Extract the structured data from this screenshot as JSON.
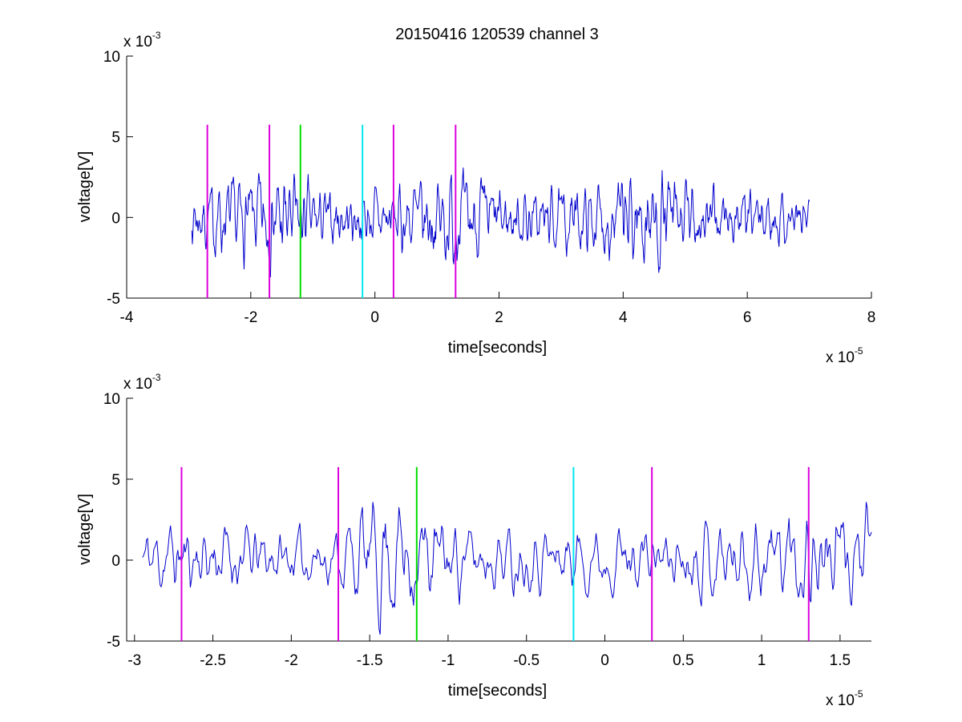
{
  "chart_data": [
    {
      "type": "line",
      "title": "20150416 120539 channel 3",
      "xlabel": "time[seconds]",
      "ylabel": "voltage[V]",
      "x_multiplier_label": "x 10",
      "x_multiplier_exp": "-5",
      "y_multiplier_label": "x 10",
      "y_multiplier_exp": "-3",
      "xlim": [
        -4,
        8
      ],
      "ylim": [
        -5,
        10
      ],
      "xticks": [
        -4,
        -2,
        0,
        2,
        4,
        6,
        8
      ],
      "xtick_labels": [
        "-4",
        "-2",
        "0",
        "2",
        "4",
        "6",
        "8"
      ],
      "yticks": [
        -5,
        0,
        5,
        10
      ],
      "ytick_labels": [
        "-5",
        "0",
        "5",
        "10"
      ],
      "grid": false,
      "signal": {
        "color": "#0000cc",
        "x_range": [
          -2.95,
          7.0
        ],
        "samples": 1100,
        "seed": 7,
        "noise_amplitude": 0.9,
        "envelope": [
          [
            -2.95,
            1.0
          ],
          [
            -2.2,
            1.3
          ],
          [
            -1.4,
            1.7
          ],
          [
            -0.8,
            0.9
          ],
          [
            0.0,
            1.0
          ],
          [
            1.2,
            1.6
          ],
          [
            2.5,
            0.9
          ],
          [
            3.5,
            1.1
          ],
          [
            4.3,
            1.8
          ],
          [
            5.5,
            1.0
          ],
          [
            7.0,
            0.8
          ]
        ]
      },
      "markers": [
        {
          "x": -2.7,
          "color": "#dd00dd",
          "y_top": 5.75
        },
        {
          "x": -1.7,
          "color": "#dd00dd",
          "y_top": 5.75
        },
        {
          "x": -1.2,
          "color": "#00dd00",
          "y_top": 5.75
        },
        {
          "x": -0.2,
          "color": "#00e5ee",
          "y_top": 5.75
        },
        {
          "x": 0.3,
          "color": "#dd00dd",
          "y_top": 5.75
        },
        {
          "x": 1.3,
          "color": "#dd00dd",
          "y_top": 5.75
        }
      ]
    },
    {
      "type": "line",
      "title": "",
      "xlabel": "time[seconds]",
      "ylabel": "voltage[V]",
      "x_multiplier_label": "x 10",
      "x_multiplier_exp": "-5",
      "y_multiplier_label": "x 10",
      "y_multiplier_exp": "-3",
      "xlim": [
        -3.05,
        1.7
      ],
      "ylim": [
        -5,
        10
      ],
      "xticks": [
        -3,
        -2.5,
        -2,
        -1.5,
        -1,
        -0.5,
        0,
        0.5,
        1,
        1.5
      ],
      "xtick_labels": [
        "-3",
        "-2.5",
        "-2",
        "-1.5",
        "-1",
        "-0.5",
        "0",
        "0.5",
        "1",
        "1.5"
      ],
      "yticks": [
        -5,
        0,
        5,
        10
      ],
      "ytick_labels": [
        "-5",
        "0",
        "5",
        "10"
      ],
      "grid": false,
      "signal": {
        "color": "#0000cc",
        "x_range": [
          -2.95,
          1.7
        ],
        "samples": 700,
        "seed": 11,
        "noise_amplitude": 1.0,
        "envelope": [
          [
            -2.95,
            1.1
          ],
          [
            -2.5,
            1.2
          ],
          [
            -2.0,
            0.8
          ],
          [
            -1.7,
            0.9
          ],
          [
            -1.35,
            2.2
          ],
          [
            -1.2,
            1.6
          ],
          [
            -0.8,
            0.9
          ],
          [
            -0.2,
            1.0
          ],
          [
            0.3,
            0.9
          ],
          [
            0.8,
            1.1
          ],
          [
            1.2,
            1.8
          ],
          [
            1.7,
            1.4
          ]
        ]
      },
      "markers": [
        {
          "x": -2.7,
          "color": "#dd00dd",
          "y_top": 5.75
        },
        {
          "x": -1.7,
          "color": "#dd00dd",
          "y_top": 5.75
        },
        {
          "x": -1.2,
          "color": "#00dd00",
          "y_top": 5.75
        },
        {
          "x": -0.2,
          "color": "#00e5ee",
          "y_top": 5.75
        },
        {
          "x": 0.3,
          "color": "#dd00dd",
          "y_top": 5.75
        },
        {
          "x": 1.3,
          "color": "#dd00dd",
          "y_top": 5.75
        }
      ]
    }
  ]
}
